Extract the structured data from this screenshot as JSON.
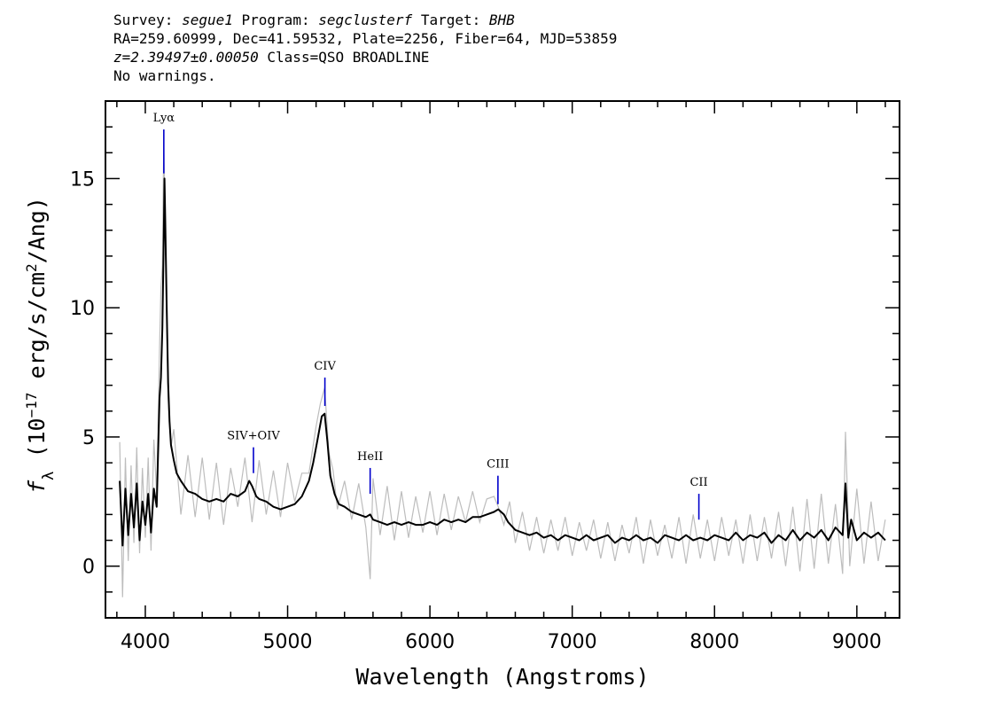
{
  "header": {
    "survey_label": "Survey:",
    "survey_value": "segue1",
    "program_label": "Program:",
    "program_value": "segclusterf",
    "target_label": "Target:",
    "target_value": "BHB",
    "line2": "RA=259.60999, Dec=41.59532, Plate=2256, Fiber=64, MJD=53859",
    "redshift": "z=2.39497±0.00050",
    "class_text": "Class=QSO BROADLINE",
    "warnings": "No warnings."
  },
  "chart_data": {
    "type": "line",
    "title": "",
    "xlabel": "Wavelength (Angstroms)",
    "ylabel": "f_λ (10^-17 erg/s/cm^2/Ang)",
    "ylabel_parts": {
      "f": "f",
      "sub": "λ",
      "pre": "(10",
      "exp1": "−17",
      "mid": " erg/s/cm",
      "exp2": "2",
      "post": "/Ang)"
    },
    "xlim": [
      3720,
      9300
    ],
    "ylim": [
      -2,
      18
    ],
    "xticks": [
      4000,
      5000,
      6000,
      7000,
      8000,
      9000
    ],
    "yticks": [
      0,
      5,
      10,
      15
    ],
    "grid": false,
    "colors": {
      "raw": "#bdbdbd",
      "smoothed": "#000000",
      "line_marker": "#0000cc"
    },
    "series": [
      {
        "style": "raw-noisy",
        "x": [
          3820,
          3840,
          3860,
          3880,
          3900,
          3920,
          3940,
          3960,
          3980,
          4000,
          4020,
          4040,
          4060,
          4080,
          4100,
          4110,
          4120,
          4130,
          4140,
          4160,
          4180,
          4200,
          4250,
          4300,
          4350,
          4400,
          4450,
          4500,
          4550,
          4600,
          4650,
          4700,
          4750,
          4800,
          4850,
          4900,
          4950,
          5000,
          5050,
          5100,
          5150,
          5200,
          5230,
          5260,
          5290,
          5320,
          5350,
          5400,
          5450,
          5500,
          5550,
          5580,
          5600,
          5650,
          5700,
          5750,
          5800,
          5850,
          5900,
          5950,
          6000,
          6050,
          6100,
          6150,
          6200,
          6250,
          6300,
          6350,
          6400,
          6450,
          6480,
          6520,
          6560,
          6600,
          6650,
          6700,
          6750,
          6800,
          6850,
          6900,
          6950,
          7000,
          7050,
          7100,
          7150,
          7200,
          7250,
          7300,
          7350,
          7400,
          7450,
          7500,
          7550,
          7600,
          7650,
          7700,
          7750,
          7800,
          7850,
          7900,
          7950,
          8000,
          8050,
          8100,
          8150,
          8200,
          8250,
          8300,
          8350,
          8400,
          8450,
          8500,
          8550,
          8600,
          8650,
          8700,
          8750,
          8800,
          8850,
          8900,
          8920,
          8950,
          9000,
          9050,
          9100,
          9150,
          9200
        ],
        "y": [
          4.8,
          -1.2,
          4.2,
          0.2,
          3.9,
          0.9,
          4.6,
          0.5,
          3.8,
          1.1,
          4.2,
          0.6,
          4.9,
          2.8,
          8.4,
          10.8,
          11.6,
          16.4,
          13.1,
          6.5,
          4.6,
          5.3,
          2.0,
          4.3,
          1.9,
          4.2,
          1.8,
          4.0,
          1.6,
          3.8,
          2.3,
          4.2,
          1.7,
          4.1,
          2.0,
          3.7,
          1.9,
          4.0,
          2.5,
          3.6,
          3.6,
          5.4,
          6.3,
          6.9,
          4.4,
          3.7,
          2.2,
          3.3,
          1.8,
          3.2,
          1.5,
          -0.5,
          3.4,
          1.2,
          3.1,
          1.0,
          2.9,
          1.1,
          2.7,
          1.3,
          2.9,
          1.2,
          2.8,
          1.4,
          2.7,
          1.7,
          2.9,
          1.7,
          2.6,
          2.7,
          2.3,
          1.6,
          2.5,
          0.9,
          2.1,
          0.6,
          1.9,
          0.5,
          1.8,
          0.6,
          1.9,
          0.4,
          1.7,
          0.6,
          1.8,
          0.3,
          1.7,
          0.2,
          1.6,
          0.5,
          1.9,
          0.1,
          1.8,
          0.4,
          1.6,
          0.3,
          1.9,
          0.1,
          2.0,
          0.3,
          1.8,
          0.2,
          1.9,
          0.4,
          1.8,
          0.1,
          2.0,
          0.2,
          1.9,
          0.3,
          2.1,
          0.0,
          2.3,
          -0.2,
          2.6,
          -0.1,
          2.8,
          0.1,
          2.4,
          -0.3,
          5.2,
          0.0,
          3.0,
          0.1,
          2.5,
          0.2,
          1.8
        ]
      },
      {
        "style": "smoothed",
        "x": [
          3820,
          3840,
          3860,
          3880,
          3900,
          3920,
          3940,
          3960,
          3980,
          4000,
          4020,
          4040,
          4060,
          4080,
          4100,
          4110,
          4120,
          4130,
          4135,
          4140,
          4150,
          4160,
          4170,
          4180,
          4200,
          4220,
          4250,
          4300,
          4350,
          4400,
          4450,
          4500,
          4550,
          4600,
          4650,
          4700,
          4730,
          4750,
          4780,
          4800,
          4850,
          4900,
          4950,
          5000,
          5050,
          5100,
          5150,
          5180,
          5210,
          5240,
          5260,
          5280,
          5300,
          5330,
          5360,
          5400,
          5450,
          5500,
          5550,
          5580,
          5600,
          5650,
          5700,
          5750,
          5800,
          5850,
          5900,
          5950,
          6000,
          6050,
          6100,
          6150,
          6200,
          6250,
          6300,
          6350,
          6400,
          6450,
          6480,
          6520,
          6550,
          6600,
          6650,
          6700,
          6750,
          6800,
          6850,
          6900,
          6950,
          7000,
          7050,
          7100,
          7150,
          7200,
          7250,
          7300,
          7350,
          7400,
          7450,
          7500,
          7550,
          7600,
          7650,
          7700,
          7750,
          7800,
          7850,
          7900,
          7950,
          8000,
          8050,
          8100,
          8150,
          8200,
          8250,
          8300,
          8350,
          8400,
          8450,
          8500,
          8550,
          8600,
          8650,
          8700,
          8750,
          8800,
          8850,
          8900,
          8920,
          8940,
          8960,
          9000,
          9050,
          9100,
          9150,
          9200
        ],
        "y": [
          3.3,
          0.8,
          3.0,
          1.2,
          2.8,
          1.5,
          3.2,
          1.0,
          2.5,
          1.6,
          2.8,
          1.3,
          3.0,
          2.3,
          6.5,
          7.3,
          9.2,
          12.8,
          15.0,
          13.5,
          10.2,
          7.1,
          5.6,
          4.7,
          4.1,
          3.6,
          3.3,
          2.9,
          2.8,
          2.6,
          2.5,
          2.6,
          2.5,
          2.8,
          2.7,
          2.9,
          3.3,
          3.1,
          2.7,
          2.6,
          2.5,
          2.3,
          2.2,
          2.3,
          2.4,
          2.7,
          3.3,
          4.0,
          4.9,
          5.8,
          5.9,
          4.8,
          3.5,
          2.8,
          2.4,
          2.3,
          2.1,
          2.0,
          1.9,
          2.0,
          1.8,
          1.7,
          1.6,
          1.7,
          1.6,
          1.7,
          1.6,
          1.6,
          1.7,
          1.6,
          1.8,
          1.7,
          1.8,
          1.7,
          1.9,
          1.9,
          2.0,
          2.1,
          2.2,
          2.0,
          1.7,
          1.4,
          1.3,
          1.2,
          1.3,
          1.1,
          1.2,
          1.0,
          1.2,
          1.1,
          1.0,
          1.2,
          1.0,
          1.1,
          1.2,
          0.9,
          1.1,
          1.0,
          1.2,
          1.0,
          1.1,
          0.9,
          1.2,
          1.1,
          1.0,
          1.2,
          1.0,
          1.1,
          1.0,
          1.2,
          1.1,
          1.0,
          1.3,
          1.0,
          1.2,
          1.1,
          1.3,
          0.9,
          1.2,
          1.0,
          1.4,
          1.0,
          1.3,
          1.1,
          1.4,
          1.0,
          1.5,
          1.2,
          3.2,
          1.1,
          1.8,
          1.0,
          1.3,
          1.1,
          1.3,
          1.0
        ]
      }
    ],
    "emission_lines": [
      {
        "label": "Lyα",
        "x": 4130,
        "y_bottom": 15.2,
        "y_top": 16.9
      },
      {
        "label": "SIV+OIV",
        "x": 4760,
        "y_bottom": 3.6,
        "y_top": 4.6
      },
      {
        "label": "CIV",
        "x": 5262,
        "y_bottom": 6.2,
        "y_top": 7.3
      },
      {
        "label": "HeII",
        "x": 5580,
        "y_bottom": 2.8,
        "y_top": 3.8
      },
      {
        "label": "CIII",
        "x": 6478,
        "y_bottom": 2.4,
        "y_top": 3.5
      },
      {
        "label": "CII",
        "x": 7890,
        "y_bottom": 1.8,
        "y_top": 2.8
      }
    ]
  }
}
